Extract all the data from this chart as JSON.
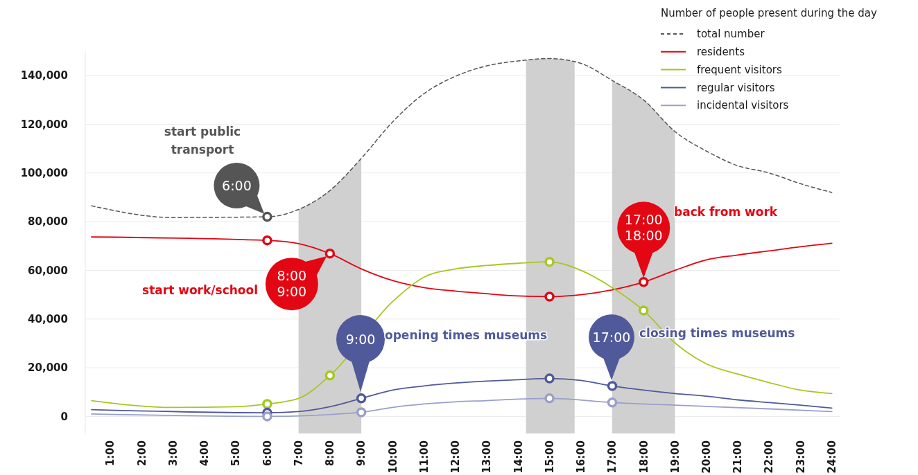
{
  "chart_data": {
    "type": "line",
    "legend_title": "Number of people present during the day",
    "legend": "top right",
    "grid": "y",
    "xlim": [
      0.2,
      24.25
    ],
    "ylim": [
      -7000,
      150000
    ],
    "yticks": [
      {
        "value": 0,
        "label": "0"
      },
      {
        "value": 20000,
        "label": "20,000"
      },
      {
        "value": 40000,
        "label": "40,000"
      },
      {
        "value": 60000,
        "label": "60,000"
      },
      {
        "value": 80000,
        "label": "80,000"
      },
      {
        "value": 100000,
        "label": "100,000"
      },
      {
        "value": 120000,
        "label": "120,000"
      },
      {
        "value": 140000,
        "label": "140,000"
      }
    ],
    "xticks": [
      {
        "value": 1,
        "label": "1:00"
      },
      {
        "value": 2,
        "label": "2:00"
      },
      {
        "value": 3,
        "label": "3:00"
      },
      {
        "value": 4,
        "label": "4:00"
      },
      {
        "value": 5,
        "label": "5:00"
      },
      {
        "value": 6,
        "label": "6:00"
      },
      {
        "value": 7,
        "label": "7:00"
      },
      {
        "value": 8,
        "label": "8:00"
      },
      {
        "value": 9,
        "label": "9:00"
      },
      {
        "value": 10,
        "label": "10:00"
      },
      {
        "value": 11,
        "label": "11:00"
      },
      {
        "value": 12,
        "label": "12:00"
      },
      {
        "value": 13,
        "label": "13:00"
      },
      {
        "value": 14,
        "label": "14:00"
      },
      {
        "value": 15,
        "label": "15:00"
      },
      {
        "value": 16,
        "label": "16:00"
      },
      {
        "value": 17,
        "label": "17:00"
      },
      {
        "value": 18,
        "label": "18:00"
      },
      {
        "value": 19,
        "label": "19:00"
      },
      {
        "value": 20,
        "label": "20:00"
      },
      {
        "value": 21,
        "label": "21:00"
      },
      {
        "value": 22,
        "label": "22:00"
      },
      {
        "value": 23,
        "label": "23:00"
      },
      {
        "value": 24,
        "label": "24:00"
      }
    ],
    "bands": [
      {
        "axis": "x",
        "from": 7,
        "to": 9,
        "color": "#d0d0d0"
      },
      {
        "axis": "x",
        "from": 14.25,
        "to": 15.8,
        "color": "#d0d0d0"
      },
      {
        "axis": "x",
        "from": 17,
        "to": 19,
        "color": "#d0d0d0"
      }
    ],
    "series": [
      {
        "name": "total number",
        "color": "#555555",
        "line_style": "dashed",
        "x": [
          0.4,
          3,
          6,
          7,
          8,
          9,
          10,
          11,
          12,
          13,
          14,
          15,
          16,
          17,
          18,
          19,
          20,
          21,
          22,
          23,
          24
        ],
        "values": [
          86500,
          81700,
          82000,
          85000,
          92800,
          106000,
          121000,
          132600,
          139700,
          144000,
          146000,
          147000,
          145000,
          138000,
          130000,
          117000,
          109000,
          103000,
          100000,
          95600,
          92000
        ]
      },
      {
        "name": "residents",
        "color": "#e30613",
        "line_style": "solid",
        "x": [
          0.4,
          6,
          7,
          8,
          9,
          10,
          11,
          12,
          13,
          14,
          15,
          16,
          17,
          18,
          19,
          20,
          21,
          22,
          23,
          24
        ],
        "values": [
          73700,
          72300,
          71000,
          66900,
          60600,
          55800,
          52900,
          51500,
          50400,
          49500,
          49200,
          50000,
          52000,
          55200,
          60000,
          64300,
          66300,
          68000,
          69700,
          71100
        ]
      },
      {
        "name": "frequent visitors",
        "color": "#a5c81e",
        "line_style": "solid",
        "x": [
          0.4,
          3,
          5,
          6,
          7,
          8,
          10,
          11,
          12,
          13,
          14,
          15,
          16,
          17,
          18,
          19,
          20,
          21,
          22,
          23,
          24
        ],
        "values": [
          6500,
          3700,
          4000,
          5100,
          7400,
          16800,
          47200,
          57200,
          60600,
          62000,
          62900,
          63500,
          60000,
          52900,
          43500,
          30200,
          21600,
          17400,
          13900,
          10800,
          9400
        ]
      },
      {
        "name": "regular visitors",
        "color": "#505a9a",
        "line_style": "solid",
        "x": [
          0.4,
          6,
          7,
          8,
          9,
          10,
          11,
          12,
          13,
          14,
          15,
          16,
          17,
          18,
          19,
          20,
          21,
          22,
          23,
          24
        ],
        "values": [
          2800,
          1500,
          2000,
          4000,
          7400,
          10800,
          12500,
          13700,
          14500,
          15100,
          15600,
          14800,
          12500,
          10800,
          9400,
          8300,
          6800,
          5700,
          4600,
          3400
        ]
      },
      {
        "name": "incidental visitors",
        "color": "#9a9fcc",
        "line_style": "solid",
        "x": [
          0.4,
          6,
          9,
          10,
          11,
          12,
          13,
          14,
          15,
          17,
          19,
          22,
          24
        ],
        "values": [
          1000,
          0,
          1700,
          3700,
          5100,
          6000,
          6500,
          7100,
          7400,
          5700,
          4600,
          3100,
          2000
        ]
      },
      {
        "type": "scatter",
        "marker": "circle",
        "color": "#555555",
        "x": [
          6
        ],
        "values": [
          82000
        ]
      },
      {
        "type": "scatter",
        "marker": "circle",
        "color": "#e30613",
        "x": [
          6,
          8,
          15,
          18
        ],
        "values": [
          72300,
          66900,
          49200,
          55200
        ]
      },
      {
        "type": "scatter",
        "marker": "circle",
        "color": "#a5c81e",
        "x": [
          6,
          8,
          15,
          18
        ],
        "values": [
          5100,
          16800,
          63500,
          43500
        ]
      },
      {
        "type": "scatter",
        "marker": "circle",
        "color": "#505a9a",
        "x": [
          6,
          9,
          15,
          17
        ],
        "values": [
          1500,
          7400,
          15600,
          12500
        ]
      },
      {
        "type": "scatter",
        "marker": "circle",
        "color": "#9a9fcc",
        "x": [
          6,
          9,
          15,
          17
        ],
        "values": [
          0,
          1700,
          7400,
          5700
        ]
      }
    ],
    "annotations": [
      {
        "text": "6:00",
        "x": 6,
        "y": 82000
      },
      "start public transport",
      {
        "text": "8:00\n9:00",
        "x": 8,
        "y": 66900
      },
      "start work/school",
      "9:00",
      "opening times museums",
      {
        "text": "17:00\n18:00",
        "x": 18,
        "y": 55200
      },
      "back from work",
      "17:00",
      "closing times museums"
    ]
  }
}
